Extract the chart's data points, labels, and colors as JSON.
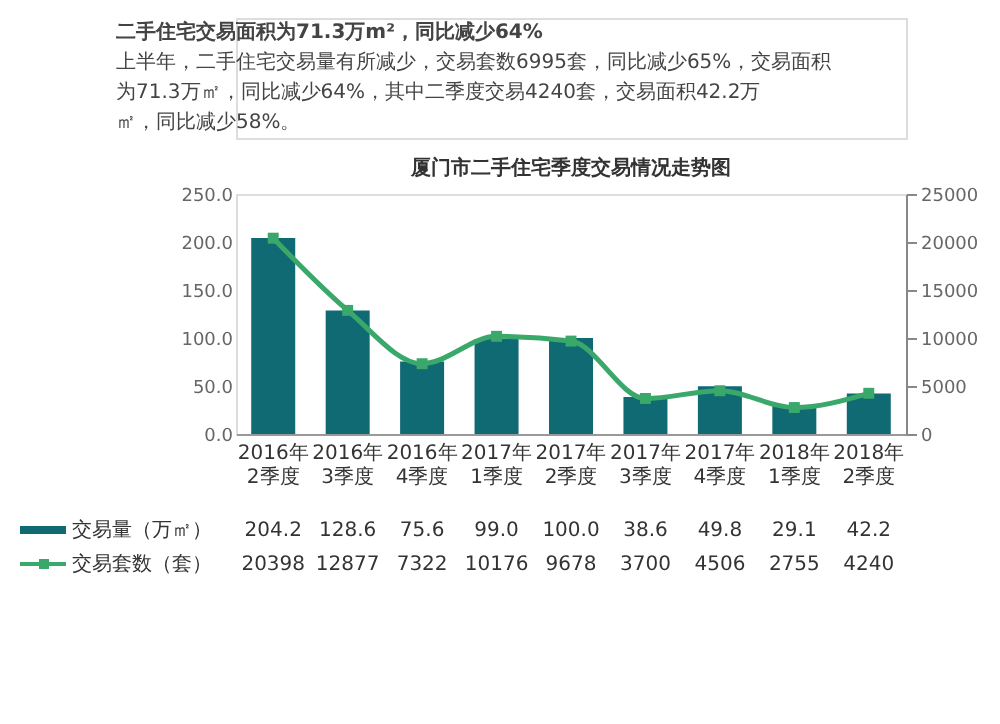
{
  "chart_data": {
    "type": "bar",
    "title": "厦门市二手住宅季度交易情况走势图",
    "annotations": [
      "二手住宅交易面积为71.3万m²，同比减少64%",
      "上半年，二手住宅交易量有所减少，交易套数6995套，同比减少65%，交易面积为71.3万㎡，同比减少64%，其中二季度交易4240套，交易面积42.2万㎡，同比减少58%。"
    ],
    "categories": [
      "2016年\n2季度",
      "2016年\n3季度",
      "2016年\n4季度",
      "2017年\n1季度",
      "2017年\n2季度",
      "2017年\n3季度",
      "2017年\n4季度",
      "2018年\n1季度",
      "2018年\n2季度"
    ],
    "series": [
      {
        "name": "交易量（万㎡）",
        "color": "#0f6a73",
        "values": [
          204.2,
          128.6,
          75.6,
          99.0,
          100.0,
          38.6,
          49.8,
          29.1,
          42.2
        ],
        "value_labels": [
          "204.2",
          "128.6",
          "75.6",
          "99.0",
          "100.0",
          "38.6",
          "49.8",
          "29.1",
          "42.2"
        ]
      },
      {
        "name": "交易套数（套）",
        "type": "line",
        "axis": "y2",
        "color": "#3aa86a",
        "values": [
          20398,
          12877,
          7322,
          10176,
          9678,
          3700,
          4506,
          2755,
          4240
        ],
        "value_labels": [
          "20398",
          "12877",
          "7322",
          "10176",
          "9678",
          "3700",
          "4506",
          "2755",
          "4240"
        ]
      }
    ],
    "ylim": [
      0,
      250
    ],
    "yticks": [
      {
        "value": 0,
        "label": "0.0"
      },
      {
        "value": 50,
        "label": "50.0"
      },
      {
        "value": 100,
        "label": "100.0"
      },
      {
        "value": 150,
        "label": "150.0"
      },
      {
        "value": 200,
        "label": "200.0"
      },
      {
        "value": 250,
        "label": "250.0"
      }
    ],
    "y2lim": [
      0,
      25000
    ],
    "y2ticks": [
      0,
      5000,
      10000,
      15000,
      20000,
      25000
    ],
    "marker": "square",
    "legend": "bottom",
    "grid": false
  }
}
